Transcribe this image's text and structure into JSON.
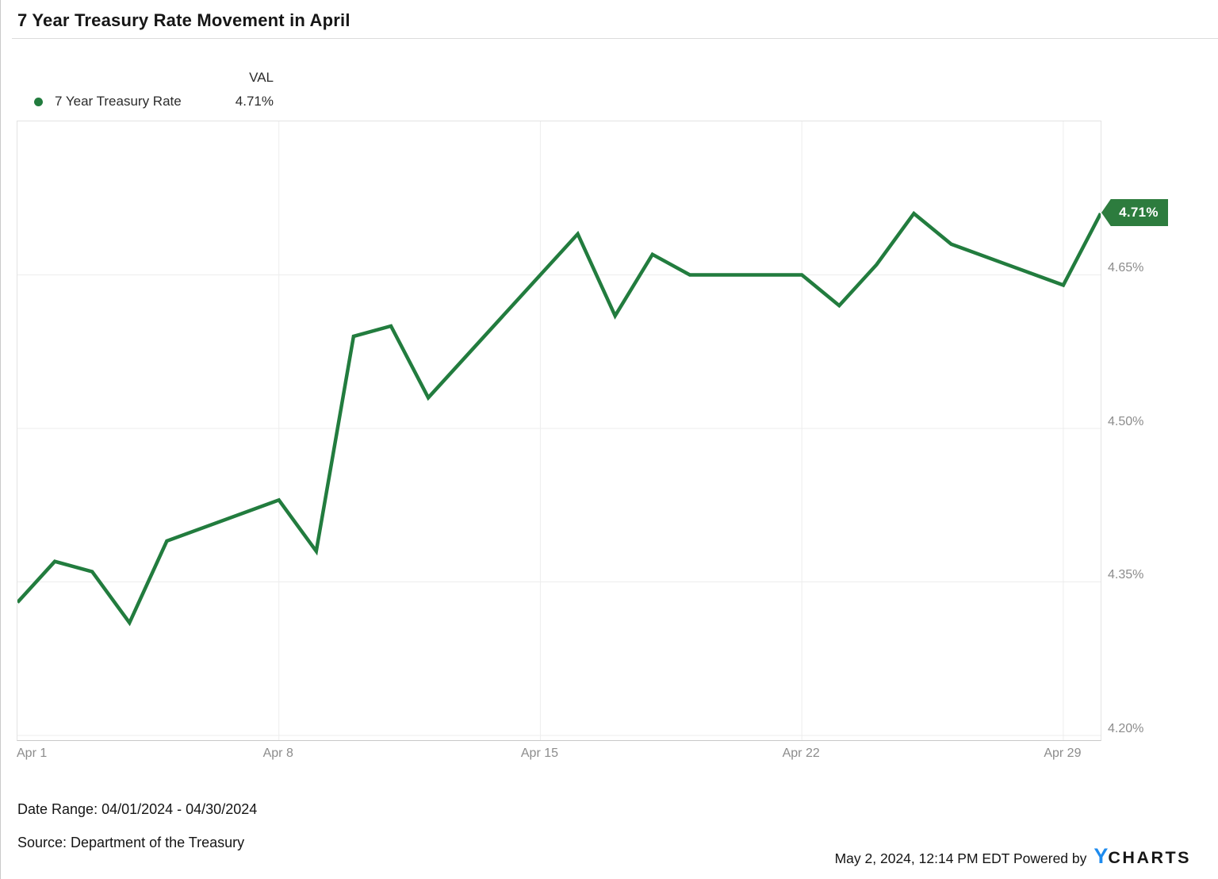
{
  "header": {
    "title": "7 Year Treasury Rate Movement in April"
  },
  "legend": {
    "val_header": "VAL",
    "series": {
      "label": "7 Year Treasury Rate",
      "value": "4.71%",
      "dot_color": "#227C3E"
    }
  },
  "chart_data": {
    "type": "line",
    "title": "7 Year Treasury Rate Movement in April",
    "legend_position": "top-left",
    "grid": true,
    "x_axis": {
      "range_days": [
        1,
        30
      ],
      "ticks": [
        {
          "label": "Apr 1",
          "day": 1
        },
        {
          "label": "Apr 8",
          "day": 8
        },
        {
          "label": "Apr 15",
          "day": 15
        },
        {
          "label": "Apr 22",
          "day": 22
        },
        {
          "label": "Apr 29",
          "day": 29
        }
      ],
      "gridline_days": [
        8,
        15,
        22,
        29
      ]
    },
    "y_axis": {
      "range": [
        4.1953,
        4.8
      ],
      "ticks": [
        {
          "label": "4.65%",
          "value": 4.65
        },
        {
          "label": "4.50%",
          "value": 4.5
        },
        {
          "label": "4.35%",
          "value": 4.35
        },
        {
          "label": "4.20%",
          "value": 4.2
        }
      ]
    },
    "series": [
      {
        "name": "7 Year Treasury Rate",
        "color": "#227C3E",
        "points": [
          [
            "04/01/2024",
            4.33
          ],
          [
            "04/02/2024",
            4.37
          ],
          [
            "04/03/2024",
            4.36
          ],
          [
            "04/04/2024",
            4.31
          ],
          [
            "04/05/2024",
            4.39
          ],
          [
            "04/08/2024",
            4.43
          ],
          [
            "04/09/2024",
            4.38
          ],
          [
            "04/10/2024",
            4.59
          ],
          [
            "04/11/2024",
            4.6
          ],
          [
            "04/12/2024",
            4.53
          ],
          [
            "04/15/2024",
            4.65
          ],
          [
            "04/16/2024",
            4.69
          ],
          [
            "04/17/2024",
            4.61
          ],
          [
            "04/18/2024",
            4.67
          ],
          [
            "04/19/2024",
            4.65
          ],
          [
            "04/22/2024",
            4.65
          ],
          [
            "04/23/2024",
            4.62
          ],
          [
            "04/24/2024",
            4.66
          ],
          [
            "04/25/2024",
            4.71
          ],
          [
            "04/26/2024",
            4.68
          ],
          [
            "04/29/2024",
            4.64
          ],
          [
            "04/30/2024",
            4.71
          ]
        ]
      }
    ],
    "last_value_badge": {
      "text": "4.71%",
      "color": "#2D7C3E"
    },
    "colors": {
      "gridline": "#ededed",
      "axis_text": "#8c8c8c"
    }
  },
  "footer": {
    "date_range": "Date Range: 04/01/2024 - 04/30/2024",
    "source": "Source: Department of the Treasury",
    "timestamp": "May 2, 2024, 12:14 PM EDT",
    "powered_by": "Powered by",
    "logo": {
      "y": "Y",
      "charts": "CHARTS",
      "y_color": "#1E8BEE"
    }
  }
}
